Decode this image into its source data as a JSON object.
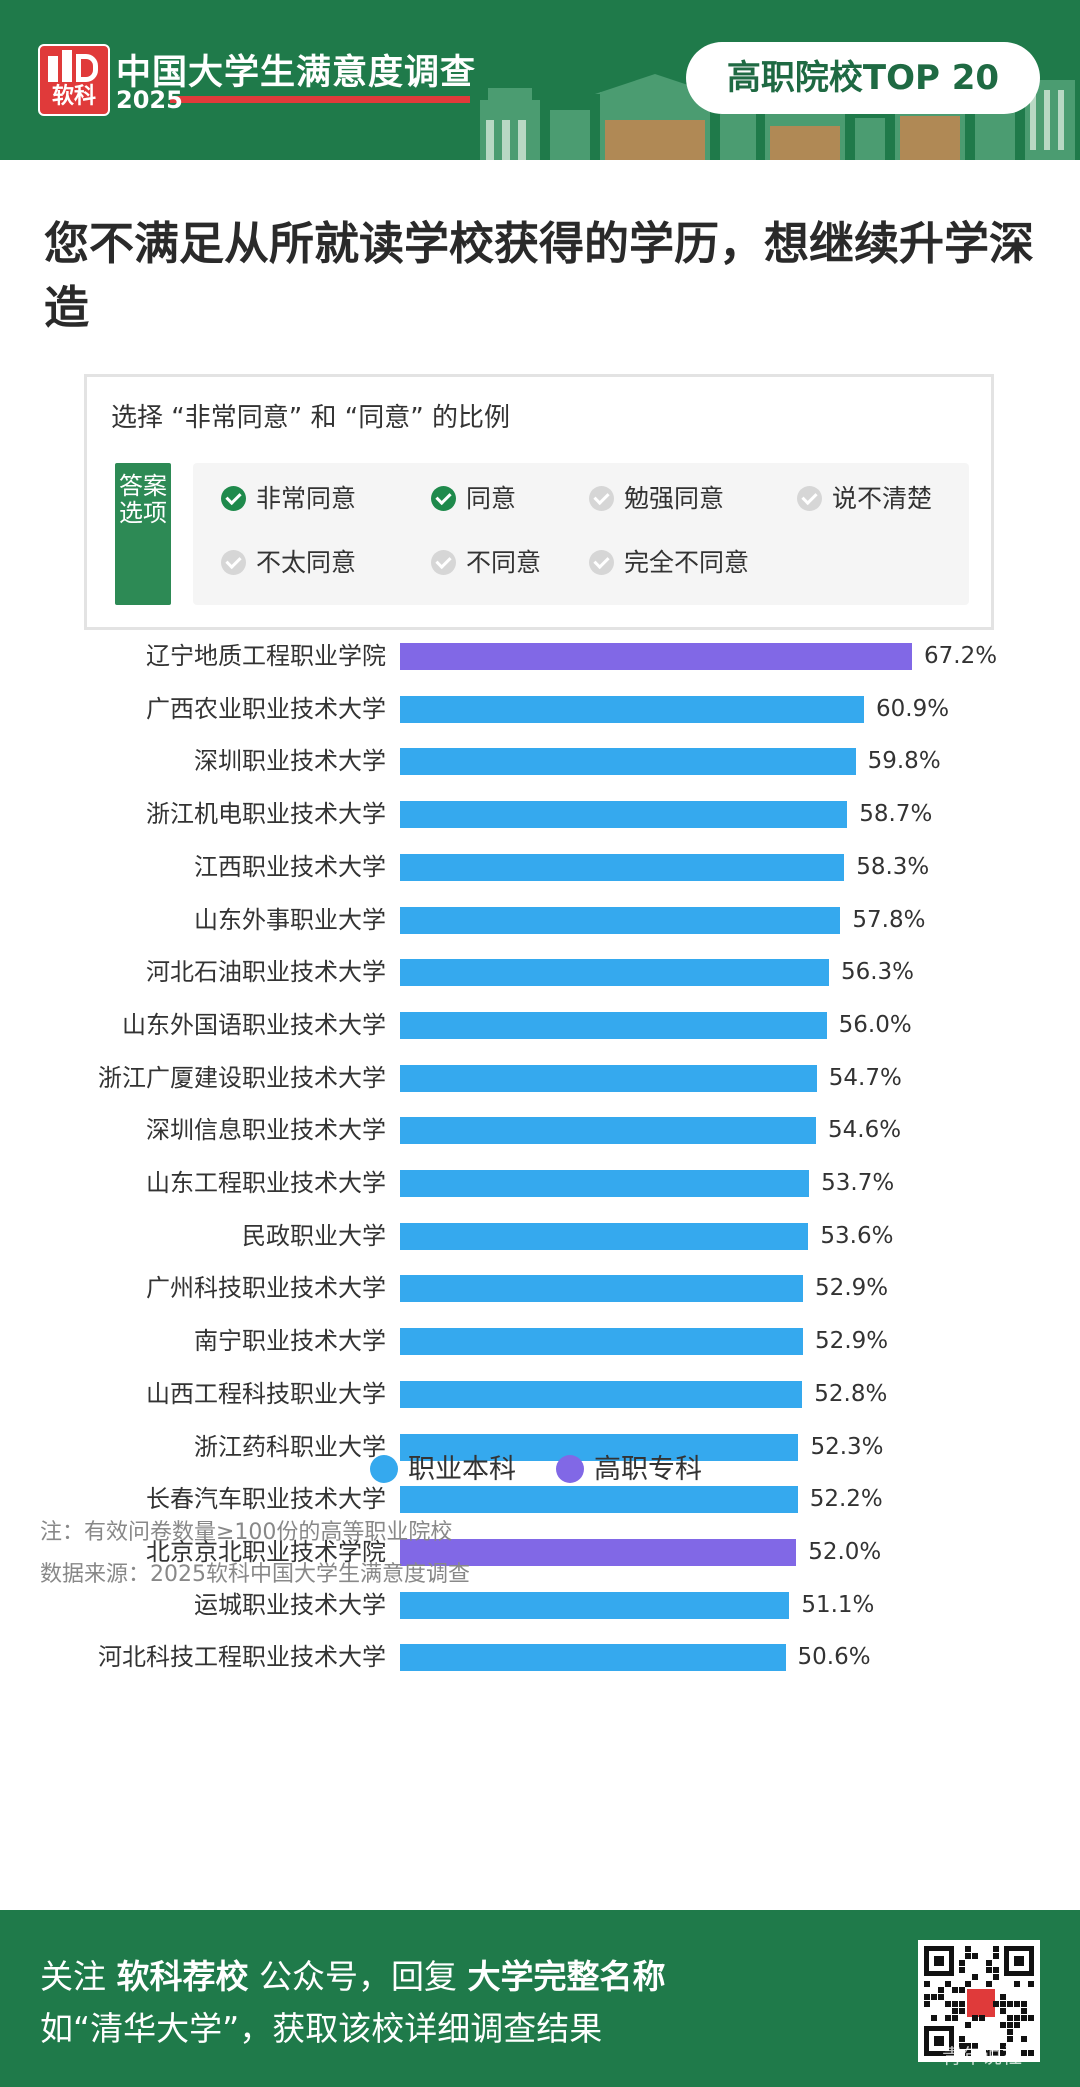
{
  "header": {
    "logo_text": "软科",
    "title": "中国大学生满意度调查",
    "year": "2025",
    "badge": "高职院校TOP 20"
  },
  "question": {
    "title": "您不满足从所就读学校获得的学历，想继续升学深造"
  },
  "options": {
    "heading": "选择 “非常同意” 和 “同意” 的比例",
    "tag": "答案选项",
    "items": [
      {
        "label": "非常同意",
        "selected": true
      },
      {
        "label": "同意",
        "selected": true
      },
      {
        "label": "勉强同意",
        "selected": false
      },
      {
        "label": "说不清楚",
        "selected": false
      },
      {
        "label": "不太同意",
        "selected": false
      },
      {
        "label": "不同意",
        "selected": false
      },
      {
        "label": "完全不同意",
        "selected": false
      }
    ]
  },
  "chart_data": {
    "type": "bar",
    "orientation": "horizontal",
    "categories": [
      "辽宁地质工程职业学院",
      "广西农业职业技术大学",
      "深圳职业技术大学",
      "浙江机电职业技术大学",
      "江西职业技术大学",
      "山东外事职业大学",
      "河北石油职业技术大学",
      "山东外国语职业技术大学",
      "浙江广厦建设职业技术大学",
      "深圳信息职业技术大学",
      "山东工程职业技术大学",
      "民政职业大学",
      "广州科技职业技术大学",
      "南宁职业技术大学",
      "山西工程科技职业大学",
      "浙江药科职业大学",
      "长春汽车职业技术大学",
      "北京京北职业技术学院",
      "运城职业技术大学",
      "河北科技工程职业技术大学"
    ],
    "values": [
      67.2,
      60.9,
      59.8,
      58.7,
      58.3,
      57.8,
      56.3,
      56.0,
      54.7,
      54.6,
      53.7,
      53.6,
      52.9,
      52.9,
      52.8,
      52.3,
      52.2,
      52.0,
      51.1,
      50.6
    ],
    "value_labels": [
      "67.2%",
      "60.9%",
      "59.8%",
      "58.7%",
      "58.3%",
      "57.8%",
      "56.3%",
      "56.0%",
      "54.7%",
      "54.6%",
      "53.7%",
      "53.6%",
      "52.9%",
      "52.9%",
      "52.8%",
      "52.3%",
      "52.2%",
      "52.0%",
      "51.1%",
      "50.6%"
    ],
    "groups": [
      "高职专科",
      "职业本科",
      "职业本科",
      "职业本科",
      "职业本科",
      "职业本科",
      "职业本科",
      "职业本科",
      "职业本科",
      "职业本科",
      "职业本科",
      "职业本科",
      "职业本科",
      "职业本科",
      "职业本科",
      "职业本科",
      "职业本科",
      "高职专科",
      "职业本科",
      "职业本科"
    ],
    "legend": [
      {
        "name": "职业本科",
        "color": "#35a9ee"
      },
      {
        "name": "高职专科",
        "color": "#8168e6"
      }
    ],
    "legend_position": "bottom",
    "xlim": [
      0,
      70
    ],
    "grid": false
  },
  "notes": {
    "note": "注：有效问卷数量≥100份的高等职业院校",
    "source": "数据来源：2025软科中国大学生满意度调查"
  },
  "footer": {
    "l1_a": "关注 ",
    "l1_b": "软科荐校",
    "l1_c": " 公众号，回复 ",
    "l1_d": "大学完整名称",
    "line2": "如“清华大学”，获取该校详细调查结果",
    "watermark": "青年说社"
  },
  "colors": {
    "brand_green": "#1f7a4a",
    "brand_red": "#e03a3a",
    "bar_blue": "#35a9ee",
    "bar_purple": "#8168e6"
  }
}
